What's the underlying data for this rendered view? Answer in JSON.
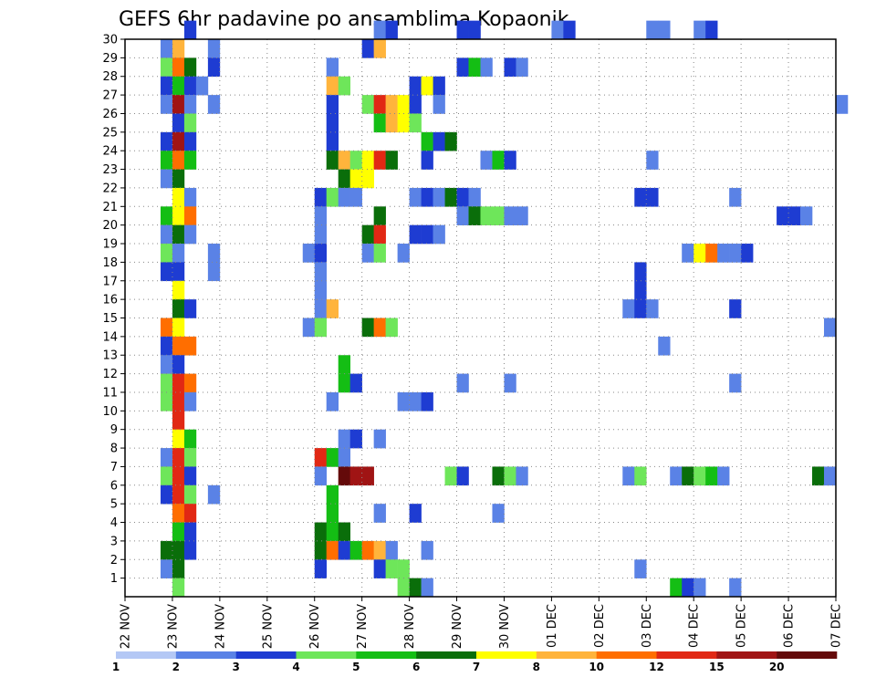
{
  "chart_data": {
    "type": "heatmap",
    "title": "GEFS 6hr padavine po ansamblima Kopaonik",
    "x_tick_labels": [
      "22 NOV",
      "23 NOV",
      "24 NOV",
      "25 NOV",
      "26 NOV",
      "27 NOV",
      "28 NOV",
      "29 NOV",
      "30 NOV",
      "01 DEC",
      "02 DEC",
      "03 DEC",
      "04 DEC",
      "05 DEC",
      "06 DEC",
      "07 DEC"
    ],
    "y_range": [
      0,
      30
    ],
    "y_ticks": [
      1,
      2,
      3,
      4,
      5,
      6,
      7,
      8,
      9,
      10,
      11,
      12,
      13,
      14,
      15,
      16,
      17,
      18,
      19,
      20,
      21,
      22,
      23,
      24,
      25,
      26,
      27,
      28,
      29,
      30
    ],
    "x_steps_per_day": 4,
    "legend": {
      "thresholds": [
        "1",
        "2",
        "3",
        "4",
        "5",
        "6",
        "7",
        "8",
        "10",
        "12",
        "15",
        "20"
      ],
      "colors": [
        "#b4c8f5",
        "#5a82e6",
        "#1e3cd2",
        "#6ee65a",
        "#14be14",
        "#0a6e0a",
        "#ffff00",
        "#ffb43c",
        "#ff6e00",
        "#e12814",
        "#a01414",
        "#640a0a"
      ]
    },
    "cells": [
      [
        30,
        "23 NOV",
        1,
        2
      ],
      [
        30,
        "27 NOV",
        1,
        1
      ],
      [
        30,
        "27 NOV",
        2,
        2
      ],
      [
        30,
        "29 NOV",
        0,
        2
      ],
      [
        30,
        "29 NOV",
        1,
        2
      ],
      [
        30,
        "01 DEC",
        0,
        1
      ],
      [
        30,
        "01 DEC",
        1,
        2
      ],
      [
        30,
        "03 DEC",
        0,
        1
      ],
      [
        30,
        "03 DEC",
        1,
        1
      ],
      [
        30,
        "04 DEC",
        0,
        1
      ],
      [
        30,
        "04 DEC",
        1,
        2
      ],
      [
        29,
        "22 NOV",
        3,
        1
      ],
      [
        29,
        "23 NOV",
        0,
        7
      ],
      [
        29,
        "23 NOV",
        3,
        1
      ],
      [
        29,
        "27 NOV",
        0,
        2
      ],
      [
        29,
        "27 NOV",
        1,
        7
      ],
      [
        28,
        "22 NOV",
        3,
        3
      ],
      [
        28,
        "23 NOV",
        0,
        8
      ],
      [
        28,
        "23 NOV",
        1,
        5
      ],
      [
        28,
        "23 NOV",
        3,
        2
      ],
      [
        28,
        "26 NOV",
        1,
        1
      ],
      [
        28,
        "29 NOV",
        0,
        2
      ],
      [
        28,
        "29 NOV",
        1,
        4
      ],
      [
        28,
        "29 NOV",
        2,
        1
      ],
      [
        28,
        "30 NOV",
        0,
        2
      ],
      [
        28,
        "30 NOV",
        1,
        1
      ],
      [
        27,
        "22 NOV",
        3,
        2
      ],
      [
        27,
        "23 NOV",
        0,
        4
      ],
      [
        27,
        "23 NOV",
        1,
        2
      ],
      [
        27,
        "23 NOV",
        2,
        1
      ],
      [
        27,
        "26 NOV",
        1,
        7
      ],
      [
        27,
        "26 NOV",
        2,
        3
      ],
      [
        27,
        "28 NOV",
        0,
        2
      ],
      [
        27,
        "28 NOV",
        1,
        6
      ],
      [
        27,
        "28 NOV",
        2,
        2
      ],
      [
        26,
        "22 NOV",
        3,
        1
      ],
      [
        26,
        "23 NOV",
        0,
        10
      ],
      [
        26,
        "23 NOV",
        1,
        1
      ],
      [
        26,
        "23 NOV",
        3,
        1
      ],
      [
        26,
        "26 NOV",
        1,
        2
      ],
      [
        26,
        "27 NOV",
        0,
        3
      ],
      [
        26,
        "27 NOV",
        1,
        9
      ],
      [
        26,
        "27 NOV",
        2,
        7
      ],
      [
        26,
        "27 NOV",
        3,
        6
      ],
      [
        26,
        "28 NOV",
        0,
        2
      ],
      [
        26,
        "28 NOV",
        2,
        1
      ],
      [
        26,
        "07 DEC",
        0,
        1
      ],
      [
        25,
        "23 NOV",
        0,
        2
      ],
      [
        25,
        "23 NOV",
        1,
        3
      ],
      [
        25,
        "26 NOV",
        1,
        2
      ],
      [
        25,
        "27 NOV",
        1,
        4
      ],
      [
        25,
        "27 NOV",
        2,
        7
      ],
      [
        25,
        "27 NOV",
        3,
        6
      ],
      [
        25,
        "28 NOV",
        0,
        3
      ],
      [
        24,
        "22 NOV",
        3,
        2
      ],
      [
        24,
        "23 NOV",
        0,
        10
      ],
      [
        24,
        "23 NOV",
        1,
        2
      ],
      [
        24,
        "26 NOV",
        1,
        2
      ],
      [
        24,
        "28 NOV",
        1,
        4
      ],
      [
        24,
        "28 NOV",
        2,
        2
      ],
      [
        24,
        "28 NOV",
        3,
        5
      ],
      [
        23,
        "22 NOV",
        3,
        4
      ],
      [
        23,
        "23 NOV",
        0,
        8
      ],
      [
        23,
        "23 NOV",
        1,
        4
      ],
      [
        23,
        "26 NOV",
        1,
        5
      ],
      [
        23,
        "26 NOV",
        2,
        7
      ],
      [
        23,
        "26 NOV",
        3,
        3
      ],
      [
        23,
        "27 NOV",
        0,
        6
      ],
      [
        23,
        "27 NOV",
        1,
        9
      ],
      [
        23,
        "27 NOV",
        2,
        5
      ],
      [
        23,
        "28 NOV",
        1,
        2
      ],
      [
        23,
        "29 NOV",
        2,
        1
      ],
      [
        23,
        "29 NOV",
        3,
        4
      ],
      [
        23,
        "30 NOV",
        0,
        2
      ],
      [
        23,
        "03 DEC",
        0,
        1
      ],
      [
        22,
        "22 NOV",
        3,
        1
      ],
      [
        22,
        "23 NOV",
        0,
        5
      ],
      [
        22,
        "26 NOV",
        2,
        5
      ],
      [
        22,
        "26 NOV",
        3,
        6
      ],
      [
        22,
        "27 NOV",
        0,
        6
      ],
      [
        21,
        "23 NOV",
        0,
        6
      ],
      [
        21,
        "23 NOV",
        1,
        1
      ],
      [
        21,
        "26 NOV",
        0,
        2
      ],
      [
        21,
        "26 NOV",
        1,
        3
      ],
      [
        21,
        "26 NOV",
        2,
        1
      ],
      [
        21,
        "26 NOV",
        3,
        1
      ],
      [
        21,
        "28 NOV",
        0,
        1
      ],
      [
        21,
        "28 NOV",
        1,
        2
      ],
      [
        21,
        "28 NOV",
        2,
        1
      ],
      [
        21,
        "28 NOV",
        3,
        5
      ],
      [
        21,
        "29 NOV",
        0,
        2
      ],
      [
        21,
        "29 NOV",
        1,
        1
      ],
      [
        21,
        "02 DEC",
        3,
        2
      ],
      [
        21,
        "03 DEC",
        0,
        2
      ],
      [
        21,
        "04 DEC",
        3,
        1
      ],
      [
        20,
        "22 NOV",
        3,
        4
      ],
      [
        20,
        "23 NOV",
        0,
        6
      ],
      [
        20,
        "23 NOV",
        1,
        8
      ],
      [
        20,
        "26 NOV",
        0,
        1
      ],
      [
        20,
        "27 NOV",
        1,
        5
      ],
      [
        20,
        "29 NOV",
        0,
        1
      ],
      [
        20,
        "29 NOV",
        1,
        5
      ],
      [
        20,
        "29 NOV",
        2,
        3
      ],
      [
        20,
        "29 NOV",
        3,
        3
      ],
      [
        20,
        "30 NOV",
        0,
        1
      ],
      [
        20,
        "30 NOV",
        1,
        1
      ],
      [
        20,
        "05 DEC",
        3,
        2
      ],
      [
        20,
        "06 DEC",
        0,
        2
      ],
      [
        20,
        "06 DEC",
        1,
        1
      ],
      [
        19,
        "22 NOV",
        3,
        1
      ],
      [
        19,
        "23 NOV",
        0,
        5
      ],
      [
        19,
        "23 NOV",
        1,
        1
      ],
      [
        19,
        "26 NOV",
        0,
        1
      ],
      [
        19,
        "27 NOV",
        0,
        5
      ],
      [
        19,
        "27 NOV",
        1,
        9
      ],
      [
        19,
        "28 NOV",
        0,
        2
      ],
      [
        19,
        "28 NOV",
        1,
        2
      ],
      [
        19,
        "28 NOV",
        2,
        1
      ],
      [
        18,
        "22 NOV",
        3,
        3
      ],
      [
        18,
        "23 NOV",
        0,
        1
      ],
      [
        18,
        "23 NOV",
        3,
        1
      ],
      [
        18,
        "25 NOV",
        3,
        1
      ],
      [
        18,
        "26 NOV",
        0,
        2
      ],
      [
        18,
        "27 NOV",
        0,
        1
      ],
      [
        18,
        "27 NOV",
        1,
        3
      ],
      [
        18,
        "27 NOV",
        3,
        1
      ],
      [
        18,
        "03 DEC",
        3,
        1
      ],
      [
        18,
        "04 DEC",
        0,
        6
      ],
      [
        18,
        "04 DEC",
        1,
        8
      ],
      [
        18,
        "04 DEC",
        2,
        1
      ],
      [
        18,
        "04 DEC",
        3,
        1
      ],
      [
        18,
        "05 DEC",
        0,
        2
      ],
      [
        17,
        "22 NOV",
        3,
        2
      ],
      [
        17,
        "23 NOV",
        0,
        2
      ],
      [
        17,
        "23 NOV",
        3,
        1
      ],
      [
        17,
        "26 NOV",
        0,
        1
      ],
      [
        17,
        "02 DEC",
        3,
        2
      ],
      [
        16,
        "23 NOV",
        0,
        6
      ],
      [
        16,
        "26 NOV",
        0,
        1
      ],
      [
        16,
        "02 DEC",
        3,
        2
      ],
      [
        15,
        "23 NOV",
        0,
        5
      ],
      [
        15,
        "23 NOV",
        1,
        2
      ],
      [
        15,
        "26 NOV",
        0,
        1
      ],
      [
        15,
        "26 NOV",
        1,
        7
      ],
      [
        15,
        "02 DEC",
        2,
        1
      ],
      [
        15,
        "02 DEC",
        3,
        2
      ],
      [
        15,
        "03 DEC",
        0,
        1
      ],
      [
        15,
        "04 DEC",
        3,
        2
      ],
      [
        14,
        "22 NOV",
        3,
        8
      ],
      [
        14,
        "23 NOV",
        0,
        6
      ],
      [
        14,
        "25 NOV",
        3,
        1
      ],
      [
        14,
        "26 NOV",
        0,
        3
      ],
      [
        14,
        "27 NOV",
        0,
        5
      ],
      [
        14,
        "27 NOV",
        1,
        8
      ],
      [
        14,
        "27 NOV",
        2,
        3
      ],
      [
        14,
        "06 DEC",
        3,
        1
      ],
      [
        13,
        "22 NOV",
        3,
        2
      ],
      [
        13,
        "23 NOV",
        0,
        8
      ],
      [
        13,
        "23 NOV",
        1,
        8
      ],
      [
        13,
        "03 DEC",
        1,
        1
      ],
      [
        12,
        "22 NOV",
        3,
        1
      ],
      [
        12,
        "23 NOV",
        0,
        2
      ],
      [
        12,
        "26 NOV",
        2,
        4
      ],
      [
        11,
        "22 NOV",
        3,
        3
      ],
      [
        11,
        "23 NOV",
        0,
        9
      ],
      [
        11,
        "23 NOV",
        1,
        8
      ],
      [
        11,
        "26 NOV",
        2,
        4
      ],
      [
        11,
        "26 NOV",
        3,
        2
      ],
      [
        11,
        "29 NOV",
        0,
        1
      ],
      [
        11,
        "30 NOV",
        0,
        1
      ],
      [
        11,
        "04 DEC",
        3,
        1
      ],
      [
        10,
        "22 NOV",
        3,
        3
      ],
      [
        10,
        "23 NOV",
        0,
        9
      ],
      [
        10,
        "23 NOV",
        1,
        1
      ],
      [
        10,
        "26 NOV",
        1,
        1
      ],
      [
        10,
        "27 NOV",
        3,
        1
      ],
      [
        10,
        "28 NOV",
        0,
        1
      ],
      [
        10,
        "28 NOV",
        1,
        2
      ],
      [
        9,
        "23 NOV",
        0,
        9
      ],
      [
        8,
        "23 NOV",
        0,
        6
      ],
      [
        8,
        "23 NOV",
        1,
        4
      ],
      [
        8,
        "26 NOV",
        2,
        1
      ],
      [
        8,
        "26 NOV",
        3,
        2
      ],
      [
        8,
        "27 NOV",
        1,
        1
      ],
      [
        7,
        "22 NOV",
        3,
        1
      ],
      [
        7,
        "23 NOV",
        0,
        9
      ],
      [
        7,
        "23 NOV",
        1,
        3
      ],
      [
        7,
        "26 NOV",
        0,
        9
      ],
      [
        7,
        "26 NOV",
        1,
        4
      ],
      [
        7,
        "26 NOV",
        2,
        1
      ],
      [
        6,
        "22 NOV",
        3,
        3
      ],
      [
        6,
        "23 NOV",
        0,
        9
      ],
      [
        6,
        "23 NOV",
        1,
        2
      ],
      [
        6,
        "26 NOV",
        0,
        1
      ],
      [
        6,
        "26 NOV",
        2,
        11
      ],
      [
        6,
        "26 NOV",
        3,
        10
      ],
      [
        6,
        "27 NOV",
        0,
        10
      ],
      [
        6,
        "28 NOV",
        3,
        3
      ],
      [
        6,
        "29 NOV",
        0,
        2
      ],
      [
        6,
        "29 NOV",
        3,
        5
      ],
      [
        6,
        "30 NOV",
        0,
        3
      ],
      [
        6,
        "30 NOV",
        1,
        1
      ],
      [
        6,
        "02 DEC",
        2,
        1
      ],
      [
        6,
        "02 DEC",
        3,
        3
      ],
      [
        6,
        "03 DEC",
        2,
        1
      ],
      [
        6,
        "03 DEC",
        3,
        5
      ],
      [
        6,
        "04 DEC",
        0,
        3
      ],
      [
        6,
        "04 DEC",
        1,
        4
      ],
      [
        6,
        "04 DEC",
        2,
        1
      ],
      [
        6,
        "06 DEC",
        2,
        5
      ],
      [
        6,
        "06 DEC",
        3,
        1
      ],
      [
        5,
        "22 NOV",
        3,
        2
      ],
      [
        5,
        "23 NOV",
        0,
        9
      ],
      [
        5,
        "23 NOV",
        1,
        3
      ],
      [
        5,
        "23 NOV",
        3,
        1
      ],
      [
        5,
        "26 NOV",
        1,
        4
      ],
      [
        4,
        "23 NOV",
        0,
        8
      ],
      [
        4,
        "23 NOV",
        1,
        9
      ],
      [
        4,
        "26 NOV",
        1,
        4
      ],
      [
        4,
        "27 NOV",
        1,
        1
      ],
      [
        4,
        "28 NOV",
        0,
        2
      ],
      [
        4,
        "29 NOV",
        3,
        1
      ],
      [
        3,
        "23 NOV",
        0,
        4
      ],
      [
        3,
        "23 NOV",
        1,
        2
      ],
      [
        3,
        "26 NOV",
        0,
        5
      ],
      [
        3,
        "26 NOV",
        1,
        4
      ],
      [
        3,
        "26 NOV",
        2,
        5
      ],
      [
        2,
        "22 NOV",
        3,
        5
      ],
      [
        2,
        "23 NOV",
        0,
        5
      ],
      [
        2,
        "23 NOV",
        1,
        2
      ],
      [
        2,
        "26 NOV",
        0,
        5
      ],
      [
        2,
        "26 NOV",
        1,
        8
      ],
      [
        2,
        "26 NOV",
        2,
        2
      ],
      [
        2,
        "26 NOV",
        3,
        4
      ],
      [
        2,
        "27 NOV",
        0,
        8
      ],
      [
        2,
        "27 NOV",
        1,
        7
      ],
      [
        2,
        "27 NOV",
        2,
        1
      ],
      [
        2,
        "28 NOV",
        1,
        1
      ],
      [
        1,
        "22 NOV",
        3,
        1
      ],
      [
        1,
        "23 NOV",
        0,
        5
      ],
      [
        1,
        "26 NOV",
        0,
        2
      ],
      [
        1,
        "27 NOV",
        1,
        2
      ],
      [
        1,
        "27 NOV",
        2,
        3
      ],
      [
        1,
        "27 NOV",
        3,
        3
      ],
      [
        1,
        "02 DEC",
        3,
        1
      ],
      [
        0,
        "23 NOV",
        0,
        3
      ],
      [
        0,
        "27 NOV",
        3,
        3
      ],
      [
        0,
        "28 NOV",
        0,
        5
      ],
      [
        0,
        "28 NOV",
        1,
        1
      ],
      [
        0,
        "03 DEC",
        2,
        4
      ],
      [
        0,
        "03 DEC",
        3,
        2
      ],
      [
        0,
        "04 DEC",
        0,
        1
      ],
      [
        0,
        "04 DEC",
        3,
        1
      ]
    ]
  }
}
